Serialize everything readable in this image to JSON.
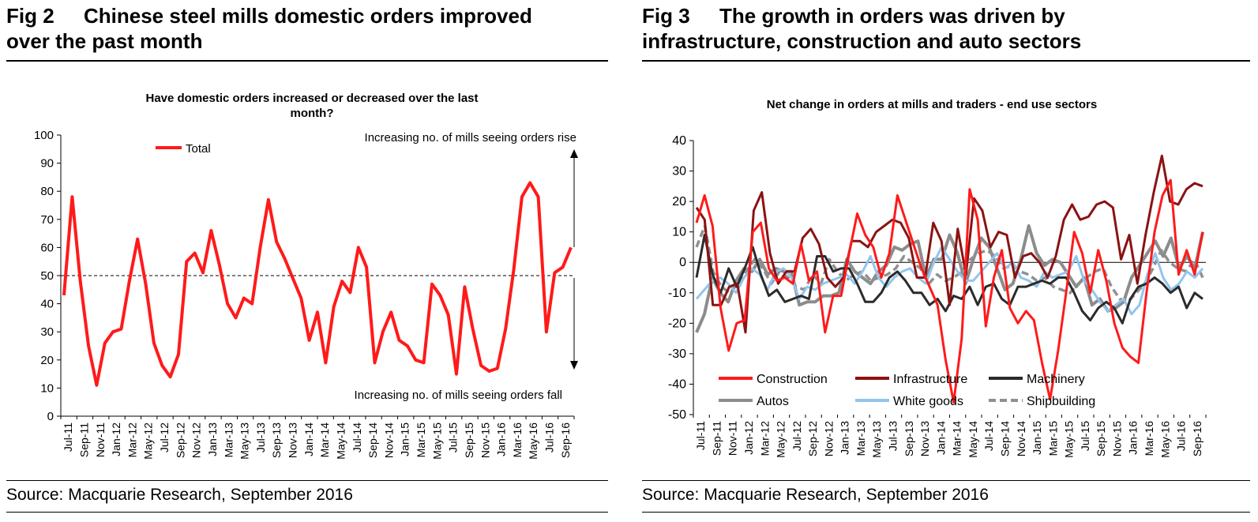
{
  "left_panel": {
    "fig_number": "Fig 2",
    "title_line1": "Chinese steel mills domestic orders improved",
    "title_line2": "over the past month",
    "source": "Source: Macquarie Research, September 2016"
  },
  "right_panel": {
    "fig_number": "Fig 3",
    "title_line1": "The growth in orders was driven by",
    "title_line2": "infrastructure, construction and auto sectors",
    "source": "Source: Macquarie Research, September 2016"
  },
  "colors": {
    "total": "#ff1a1a",
    "construction": "#ff1a1a",
    "infrastructure": "#8b1212",
    "machinery": "#2b2b2b",
    "autos": "#8c8c8c",
    "white_goods": "#92c5ee",
    "shipbuilding": "#909090"
  },
  "chart_data": [
    {
      "type": "line",
      "title_line1": "Have domestic orders increased or decreased over the last",
      "title_line2": "month?",
      "ylim": [
        0,
        100
      ],
      "yticks": [
        "0",
        "10",
        "20",
        "30",
        "40",
        "50",
        "60",
        "70",
        "80",
        "90",
        "100"
      ],
      "reference_line": 50,
      "annotation_top": "Increasing no. of mills seeing orders rise",
      "annotation_bottom": "Increasing no. of mills seeing orders fall",
      "x_tick_labels": [
        "Jul-11",
        "Sep-11",
        "Nov-11",
        "Jan-12",
        "Mar-12",
        "May-12",
        "Jul-12",
        "Sep-12",
        "Nov-12",
        "Jan-13",
        "Mar-13",
        "May-13",
        "Jul-13",
        "Sep-13",
        "Nov-13",
        "Jan-14",
        "Mar-14",
        "May-14",
        "Jul-14",
        "Sep-14",
        "Nov-14",
        "Jan-15",
        "Mar-15",
        "May-15",
        "Jul-15",
        "Sep-15",
        "Nov-15",
        "Jan-16",
        "Mar-16",
        "May-16",
        "Jul-16",
        "Sep-16"
      ],
      "series": [
        {
          "name": "Total",
          "values": [
            43,
            78,
            48,
            25,
            11,
            26,
            30,
            31,
            48,
            63,
            47,
            26,
            18,
            14,
            22,
            55,
            58,
            51,
            66,
            54,
            40,
            35,
            42,
            40,
            60,
            77,
            62,
            56,
            49,
            42,
            27,
            37,
            19,
            39,
            48,
            44,
            60,
            53,
            19,
            30,
            37,
            27,
            25,
            20,
            19,
            47,
            43,
            36,
            15,
            46,
            31,
            18,
            16,
            17,
            31,
            52,
            78,
            83,
            78,
            30,
            51,
            53,
            60
          ]
        }
      ]
    },
    {
      "type": "line",
      "title": "Net change in orders at mills and traders - end use sectors",
      "ylim": [
        -50,
        40
      ],
      "yticks": [
        "-50",
        "-40",
        "-30",
        "-20",
        "-10",
        "0",
        "10",
        "20",
        "30",
        "40"
      ],
      "x_tick_labels": [
        "Jul-11",
        "Sep-11",
        "Nov-11",
        "Jan-12",
        "Mar-12",
        "May-12",
        "Jul-12",
        "Sep-12",
        "Nov-12",
        "Jan-13",
        "Mar-13",
        "May-13",
        "Jul-13",
        "Sep-13",
        "Nov-13",
        "Jan-14",
        "Mar-14",
        "May-14",
        "Jul-14",
        "Sep-14",
        "Nov-14",
        "Jan-15",
        "Mar-15",
        "May-15",
        "Jul-15",
        "Sep-15",
        "Nov-15",
        "Jan-16",
        "Mar-16",
        "May-16",
        "Jul-16",
        "Sep-16"
      ],
      "series": [
        {
          "name": "Construction",
          "values": [
            13,
            22,
            12,
            -15,
            -29,
            -20,
            -19,
            10,
            13,
            -2,
            -6,
            -5,
            -7,
            6,
            -6,
            -3,
            -23,
            -11,
            -11,
            3,
            16,
            9,
            5,
            -5,
            3,
            22,
            14,
            6,
            -2,
            -8,
            -14,
            -32,
            -46,
            -25,
            24,
            14,
            -21,
            -5,
            4,
            -15,
            -20,
            -16,
            -19,
            -33,
            -45,
            -29,
            -10,
            10,
            3,
            -10,
            4,
            -6,
            -20,
            -28,
            -31,
            -33,
            -10,
            10,
            22,
            27,
            -4,
            4,
            -4,
            10
          ]
        },
        {
          "name": "Infrastructure",
          "values": [
            18,
            14,
            -14,
            -14,
            -8,
            -7,
            -23,
            17,
            23,
            3,
            -7,
            -3,
            -3,
            8,
            11,
            6,
            -5,
            -8,
            -5,
            7,
            7,
            5,
            10,
            12,
            14,
            13,
            8,
            -5,
            -5,
            13,
            7,
            -14,
            11,
            -4,
            21,
            17,
            5,
            10,
            9,
            -5,
            2,
            3,
            0,
            -5,
            2,
            14,
            19,
            14,
            15,
            19,
            20,
            18,
            1,
            9,
            -7,
            9,
            23,
            35,
            20,
            19,
            24,
            26,
            25
          ]
        },
        {
          "name": "Machinery",
          "values": [
            -5,
            9,
            -4,
            -10,
            -2,
            -8,
            -2,
            5,
            -4,
            -11,
            -9,
            -13,
            -12,
            -11,
            -12,
            2,
            2,
            -3,
            -2,
            -2,
            -7,
            -13,
            -13,
            -10,
            -5,
            -3,
            -6,
            -10,
            -10,
            -14,
            -12,
            -16,
            -11,
            -12,
            -8,
            -14,
            -8,
            -7,
            -12,
            -14,
            -8,
            -8,
            -7,
            -6,
            -7,
            -5,
            -5,
            -10,
            -16,
            -19,
            -15,
            -13,
            -15,
            -20,
            -12,
            -8,
            -7,
            -5,
            -7,
            -10,
            -8,
            -15,
            -10,
            -12
          ]
        },
        {
          "name": "Autos",
          "values": [
            -23,
            -17,
            -5,
            -10,
            -13,
            -6,
            -2,
            -3,
            1,
            -4,
            -2,
            -3,
            -3,
            -14,
            -13,
            -13,
            -11,
            -11,
            -10,
            1,
            -3,
            -5,
            -7,
            -3,
            -1,
            5,
            4,
            6,
            7,
            -5,
            1,
            1,
            9,
            3,
            -7,
            1,
            8,
            5,
            -2,
            -9,
            -7,
            1,
            12,
            3,
            -1,
            1,
            0,
            -4,
            -8,
            -5,
            -14,
            -12,
            -16,
            -15,
            -13,
            -5,
            -1,
            3,
            7,
            2,
            8,
            -2,
            2,
            -2,
            10
          ]
        },
        {
          "name": "White goods",
          "values": [
            -12,
            -9,
            -6,
            -5,
            -7,
            -10,
            -5,
            -2,
            -4,
            -9,
            -3,
            -2,
            -5,
            -12,
            -8,
            -9,
            -7,
            -6,
            -5,
            -4,
            -7,
            -3,
            2,
            -5,
            -8,
            -5,
            -3,
            -2,
            -5,
            -7,
            0,
            5,
            1,
            -3,
            -6,
            -6,
            -3,
            0,
            3,
            -2,
            0,
            -5,
            -6,
            -8,
            -3,
            -5,
            -4,
            -3,
            2,
            -6,
            -9,
            -13,
            -16,
            -14,
            -12,
            -17,
            -14,
            -4,
            3,
            -5,
            -9,
            -7,
            -3,
            -5,
            -2
          ]
        },
        {
          "name": "Shipbuilding",
          "values": [
            5,
            12,
            -3,
            -8,
            -10,
            -7,
            -3,
            1,
            -2,
            -7,
            -3,
            -5,
            -8,
            -9,
            -4,
            -7,
            1,
            -3,
            -6,
            -4,
            -3,
            -6,
            -5,
            -4,
            -2,
            2,
            0,
            -2,
            -7,
            -4,
            -6,
            -5,
            -3,
            1,
            3,
            4,
            2,
            -2,
            -1,
            -3,
            -4,
            -6,
            -5,
            -8,
            -9,
            -10,
            -7,
            -5,
            -3,
            -2,
            -8,
            -12,
            -13,
            -10,
            -7,
            -2,
            4,
            0,
            -2,
            -3,
            1,
            -5
          ]
        }
      ]
    }
  ]
}
